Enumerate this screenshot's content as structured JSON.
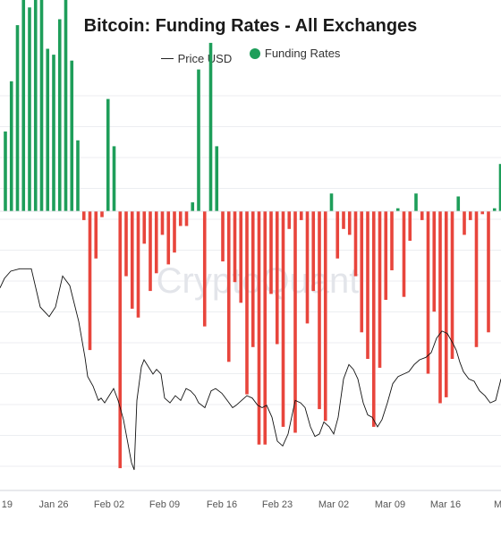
{
  "colors": {
    "positive": "#1e9e5a",
    "negative": "#e8453c",
    "price_line": "#111111",
    "grid": "#eceef1"
  },
  "watermark": "CryptoQuant",
  "chart_data": {
    "type": "bar",
    "title": "Bitcoin: Funding Rates - All Exchanges",
    "legend": [
      {
        "name": "Price USD",
        "kind": "line"
      },
      {
        "name": "Funding Rates",
        "kind": "dot"
      }
    ],
    "legend_position": "top-center",
    "grid": true,
    "x_tick_labels": [
      "19",
      "Jan 26",
      "Feb 02",
      "Feb 09",
      "Feb 16",
      "Feb 23",
      "Mar 02",
      "Mar 09",
      "Mar 16",
      "Ma"
    ],
    "funding_rates": [
      0.0027,
      0.0044,
      0.0063,
      0.0074,
      0.0069,
      0.0079,
      0.0087,
      0.0055,
      0.0053,
      0.0065,
      0.0077,
      0.0051,
      0.0024,
      -0.0003,
      -0.0047,
      -0.0016,
      -0.0002,
      0.0038,
      0.0022,
      -0.0087,
      -0.0022,
      -0.0033,
      -0.0036,
      -0.0011,
      -0.0027,
      -0.0021,
      -0.0008,
      -0.0018,
      -0.0014,
      -0.0005,
      -0.0005,
      0.0003,
      0.0048,
      -0.0039,
      0.0057,
      0.0022,
      -0.0017,
      -0.0051,
      -0.0024,
      -0.0031,
      -0.0062,
      -0.0046,
      -0.0079,
      -0.0079,
      -0.0028,
      -0.0045,
      -0.0073,
      -0.0006,
      -0.0075,
      -0.0003,
      -0.0038,
      -0.0027,
      -0.0067,
      -0.0071,
      0.0006,
      -0.0016,
      -0.0006,
      -0.0008,
      -0.0022,
      -0.0041,
      -0.005,
      -0.0073,
      -0.0053,
      -0.003,
      -0.002,
      0.0001,
      -0.0029,
      -0.001,
      0.0006,
      -0.0003,
      -0.0055,
      -0.0034,
      -0.0065,
      -0.0063,
      -0.005,
      0.0005,
      -0.0008,
      -0.0003,
      -0.0046,
      -0.0001,
      -0.0041,
      0.0001,
      0.0016
    ],
    "price_y_range": [
      -5,
      105
    ],
    "price": [
      [
        0,
        78
      ],
      [
        5,
        82
      ],
      [
        12,
        85
      ],
      [
        22,
        86
      ],
      [
        35,
        86
      ],
      [
        45,
        70
      ],
      [
        55,
        66
      ],
      [
        62,
        70
      ],
      [
        70,
        83
      ],
      [
        78,
        79
      ],
      [
        88,
        64
      ],
      [
        95,
        49
      ],
      [
        98,
        41
      ],
      [
        104,
        37
      ],
      [
        110,
        31
      ],
      [
        113,
        32
      ],
      [
        117,
        30
      ],
      [
        122,
        33
      ],
      [
        127,
        36
      ],
      [
        132,
        31
      ],
      [
        138,
        23
      ],
      [
        143,
        13
      ],
      [
        147,
        5
      ],
      [
        150,
        2
      ],
      [
        151,
        12
      ],
      [
        153,
        31
      ],
      [
        158,
        45
      ],
      [
        161,
        48
      ],
      [
        166,
        45
      ],
      [
        171,
        42
      ],
      [
        175,
        44
      ],
      [
        180,
        42
      ],
      [
        184,
        32
      ],
      [
        190,
        30
      ],
      [
        196,
        33
      ],
      [
        202,
        31
      ],
      [
        208,
        36
      ],
      [
        213,
        35
      ],
      [
        218,
        33
      ],
      [
        222,
        30
      ],
      [
        229,
        28
      ],
      [
        236,
        35
      ],
      [
        241,
        36
      ],
      [
        248,
        34
      ],
      [
        254,
        31
      ],
      [
        260,
        28
      ],
      [
        264,
        29
      ],
      [
        270,
        31
      ],
      [
        276,
        33
      ],
      [
        282,
        32
      ],
      [
        288,
        29
      ],
      [
        293,
        28
      ],
      [
        298,
        29
      ],
      [
        304,
        24
      ],
      [
        310,
        14
      ],
      [
        316,
        12
      ],
      [
        322,
        17
      ],
      [
        330,
        31
      ],
      [
        336,
        30
      ],
      [
        341,
        28
      ],
      [
        347,
        20
      ],
      [
        352,
        16
      ],
      [
        357,
        17
      ],
      [
        362,
        22
      ],
      [
        368,
        20
      ],
      [
        373,
        17
      ],
      [
        378,
        24
      ],
      [
        384,
        40
      ],
      [
        390,
        46
      ],
      [
        395,
        44
      ],
      [
        400,
        40
      ],
      [
        406,
        30
      ],
      [
        411,
        25
      ],
      [
        416,
        24
      ],
      [
        422,
        20
      ],
      [
        427,
        23
      ],
      [
        433,
        30
      ],
      [
        439,
        38
      ],
      [
        445,
        41
      ],
      [
        451,
        42
      ],
      [
        457,
        43
      ],
      [
        463,
        46
      ],
      [
        469,
        48
      ],
      [
        476,
        49
      ],
      [
        482,
        51
      ],
      [
        488,
        57
      ],
      [
        494,
        60
      ],
      [
        500,
        59
      ],
      [
        506,
        55
      ],
      [
        510,
        52
      ],
      [
        514,
        47
      ],
      [
        518,
        43
      ],
      [
        524,
        40
      ],
      [
        530,
        39
      ],
      [
        536,
        35
      ],
      [
        542,
        33
      ],
      [
        548,
        30
      ],
      [
        554,
        31
      ],
      [
        560,
        40
      ]
    ]
  }
}
